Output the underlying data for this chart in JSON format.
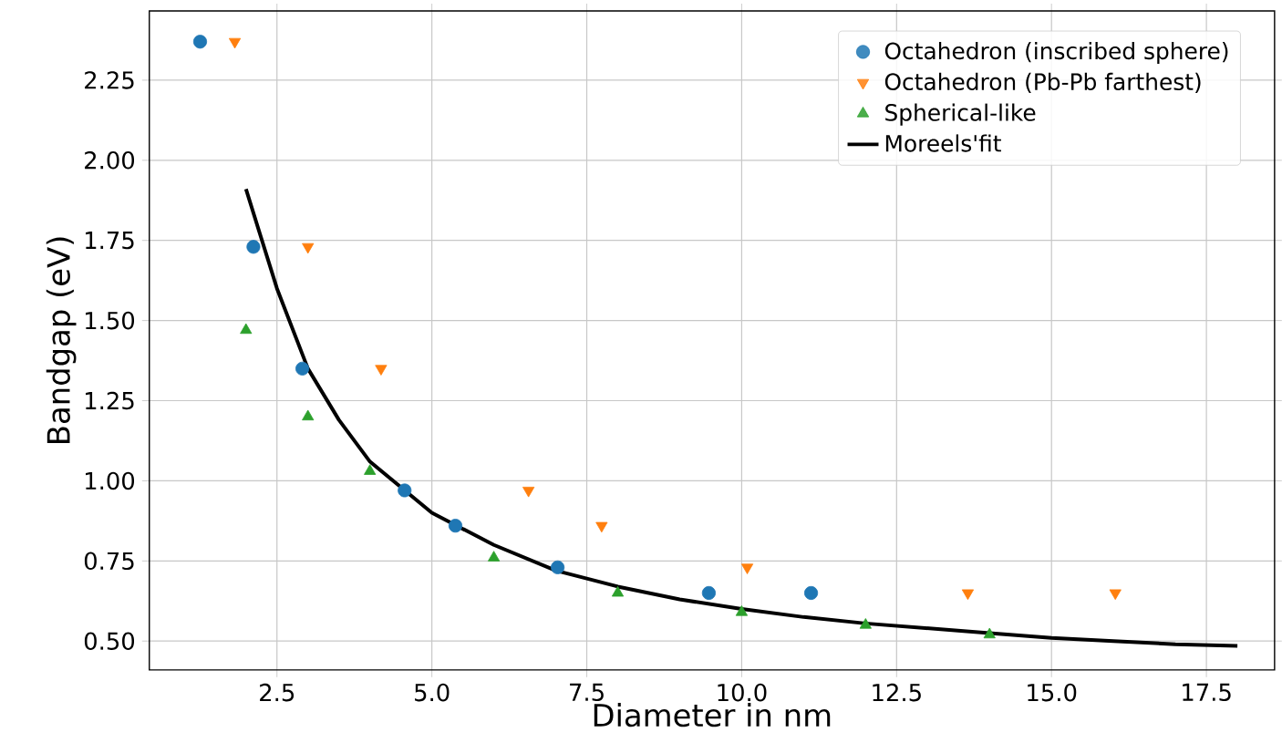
{
  "chart_data": {
    "type": "scatter",
    "xlabel": "Diameter in nm",
    "ylabel": "Bandgap (eV)",
    "xlim": [
      0.44,
      18.6
    ],
    "ylim": [
      0.41,
      2.466
    ],
    "xticks": [
      {
        "value": 2.5,
        "label": "2.5"
      },
      {
        "value": 5.0,
        "label": "5.0"
      },
      {
        "value": 7.5,
        "label": "7.5"
      },
      {
        "value": 10.0,
        "label": "10.0"
      },
      {
        "value": 12.5,
        "label": "12.5"
      },
      {
        "value": 15.0,
        "label": "15.0"
      },
      {
        "value": 17.5,
        "label": "17.5"
      }
    ],
    "yticks": [
      {
        "value": 0.5,
        "label": "0.50"
      },
      {
        "value": 0.75,
        "label": "0.75"
      },
      {
        "value": 1.0,
        "label": "1.00"
      },
      {
        "value": 1.25,
        "label": "1.25"
      },
      {
        "value": 1.5,
        "label": "1.50"
      },
      {
        "value": 1.75,
        "label": "1.75"
      },
      {
        "value": 2.0,
        "label": "2.00"
      },
      {
        "value": 2.25,
        "label": "2.25"
      }
    ],
    "grid": true,
    "legend": "top right",
    "series": [
      {
        "name": "Octahedron (inscribed sphere)",
        "marker": "circle",
        "color": "#1f77b4",
        "x": [
          1.26,
          2.12,
          2.91,
          4.56,
          5.38,
          7.03,
          9.47,
          11.12
        ],
        "values": [
          2.37,
          1.73,
          1.35,
          0.97,
          0.86,
          0.73,
          0.65,
          0.65
        ]
      },
      {
        "name": "Octahedron (Pb-Pb farthest)",
        "marker": "triangle_down",
        "color": "#ff7f0e",
        "x": [
          1.82,
          3.0,
          4.18,
          6.56,
          7.74,
          10.09,
          13.65,
          16.03
        ],
        "values": [
          2.37,
          1.73,
          1.35,
          0.97,
          0.86,
          0.73,
          0.65,
          0.65
        ]
      },
      {
        "name": "Spherical-like",
        "marker": "triangle",
        "color": "#2ca02c",
        "x": [
          2.0,
          3.0,
          4.0,
          6.0,
          8.0,
          10.0,
          12.0,
          14.0
        ],
        "values": [
          1.47,
          1.2,
          1.03,
          0.76,
          0.65,
          0.59,
          0.55,
          0.52
        ]
      },
      {
        "name": "Moreels'fit",
        "type": "line",
        "marker": "none",
        "line_style": "solid",
        "color": "#000000",
        "x": [
          2,
          2.5,
          3,
          3.5,
          4,
          5,
          6,
          7,
          8,
          9,
          10,
          11,
          12,
          13,
          14,
          15,
          16,
          17,
          18
        ],
        "values": [
          1.91,
          1.6,
          1.35,
          1.19,
          1.06,
          0.9,
          0.8,
          0.72,
          0.67,
          0.63,
          0.6,
          0.575,
          0.555,
          0.54,
          0.525,
          0.51,
          0.5,
          0.49,
          0.485
        ]
      }
    ]
  }
}
